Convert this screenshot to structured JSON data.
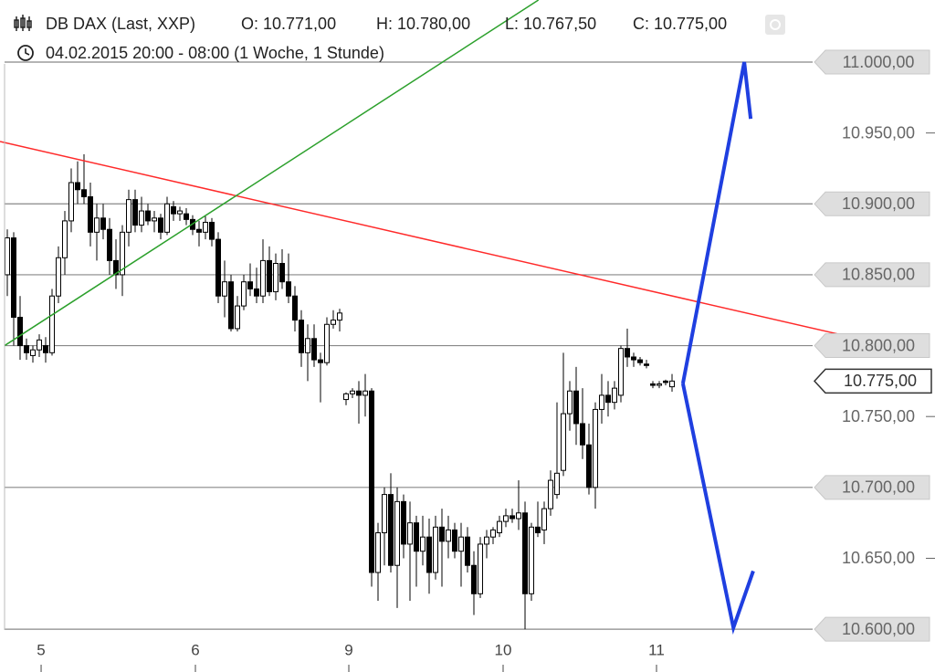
{
  "chart_data": {
    "type": "candlestick",
    "title": "DB DAX (Last, XXP)",
    "header_values": [
      "O: 10.771,00",
      "H: 10.780,00",
      "L: 10.767,50",
      "C: 10.775,00"
    ],
    "subtitle": "04.02.2015 20:00 - 08:00 (1 Woche, 1 Stunde)",
    "x": [
      0,
      1,
      2,
      3,
      4,
      5,
      6,
      7,
      8,
      9,
      10,
      11,
      12,
      13,
      14,
      15,
      16,
      17,
      18,
      19,
      20,
      21,
      22,
      23,
      24,
      25,
      26,
      27,
      28,
      29,
      30,
      31,
      32,
      33,
      34,
      35,
      36,
      37,
      38,
      39,
      40,
      41,
      42,
      43,
      44,
      45,
      46,
      47,
      48,
      49,
      50,
      51,
      52,
      53,
      54,
      55,
      56,
      57,
      58,
      59,
      60,
      61,
      62,
      63,
      64,
      65,
      66,
      67,
      68,
      69,
      70,
      71,
      72,
      73,
      74,
      75,
      76,
      77,
      78,
      79,
      80,
      81,
      82,
      83,
      84,
      85,
      86,
      87,
      88,
      89,
      90,
      91,
      92,
      93,
      94,
      95,
      96,
      97,
      98,
      99,
      100,
      101,
      102,
      103,
      104
    ],
    "open": [
      10850,
      10876,
      10820,
      10800,
      10793,
      10797,
      10800,
      10795,
      10835,
      10862,
      10888,
      10915,
      10910,
      10905,
      10880,
      10890,
      10882,
      10860,
      10850,
      10880,
      10903,
      10885,
      10895,
      10888,
      10890,
      10880,
      10898,
      10893,
      10893,
      10889,
      10882,
      10880,
      10887,
      10875,
      10835,
      10845,
      10812,
      10828,
      10845,
      10840,
      10835,
      10860,
      10838,
      10858,
      10845,
      10835,
      10818,
      10795,
      10805,
      10790,
      10788,
      10815,
      10818,
      10762,
      10766,
      10768,
      10765,
      10768,
      10640,
      10668,
      10695,
      10645,
      10690,
      10660,
      10675,
      10655,
      10665,
      10640,
      10672,
      10662,
      10670,
      10655,
      10665,
      10645,
      10625,
      10660,
      10665,
      10668,
      10676,
      10680,
      10678,
      10682,
      10625,
      10672,
      10670,
      10685,
      10695,
      10712,
      10752,
      10768,
      10745,
      10730,
      10700,
      10755,
      10765,
      10760,
      10765,
      10798,
      10792,
      10790,
      10787,
      10773,
      10772,
      10775,
      10771
    ],
    "high": [
      10882,
      10880,
      10835,
      10805,
      10800,
      10808,
      10806,
      10840,
      10870,
      10895,
      10925,
      10930,
      10935,
      10915,
      10900,
      10900,
      10890,
      10875,
      10885,
      10910,
      10910,
      10905,
      10900,
      10895,
      10893,
      10905,
      10902,
      10898,
      10897,
      10892,
      10888,
      10892,
      10890,
      10880,
      10860,
      10850,
      10835,
      10850,
      10858,
      10855,
      10875,
      10870,
      10865,
      10868,
      10865,
      10842,
      10825,
      10815,
      10815,
      10795,
      10820,
      10825,
      10826,
      10767,
      10770,
      10775,
      10780,
      10770,
      10675,
      10700,
      10710,
      10700,
      10695,
      10690,
      10680,
      10680,
      10678,
      10680,
      10685,
      10680,
      10675,
      10675,
      10672,
      10655,
      10665,
      10670,
      10672,
      10680,
      10685,
      10685,
      10705,
      10690,
      10675,
      10690,
      10690,
      10712,
      10760,
      10795,
      10775,
      10785,
      10770,
      10745,
      10760,
      10780,
      10775,
      10775,
      10800,
      10812,
      10795,
      10792,
      10790,
      10775,
      10775,
      10776,
      10780
    ],
    "low": [
      10835,
      10800,
      10790,
      10790,
      10788,
      10792,
      10788,
      10793,
      10830,
      10850,
      10880,
      10900,
      10900,
      10870,
      10860,
      10875,
      10850,
      10840,
      10835,
      10870,
      10880,
      10880,
      10885,
      10880,
      10875,
      10878,
      10888,
      10888,
      10885,
      10878,
      10870,
      10875,
      10870,
      10830,
      10820,
      10810,
      10810,
      10825,
      10835,
      10830,
      10830,
      10835,
      10832,
      10840,
      10830,
      10810,
      10785,
      10775,
      10785,
      10760,
      10786,
      10812,
      10810,
      10758,
      10763,
      10745,
      10750,
      10630,
      10620,
      10645,
      10640,
      10615,
      10650,
      10620,
      10630,
      10645,
      10625,
      10635,
      10630,
      10650,
      10650,
      10630,
      10640,
      10610,
      10622,
      10650,
      10660,
      10665,
      10672,
      10675,
      10670,
      10600,
      10620,
      10665,
      10660,
      10680,
      10692,
      10708,
      10740,
      10730,
      10720,
      10695,
      10685,
      10745,
      10750,
      10755,
      10760,
      10785,
      10785,
      10786,
      10784,
      10770,
      10770,
      10772,
      10767.5
    ],
    "close": [
      10876,
      10820,
      10800,
      10795,
      10797,
      10804,
      10795,
      10835,
      10862,
      10888,
      10915,
      10910,
      10905,
      10880,
      10890,
      10882,
      10860,
      10850,
      10880,
      10903,
      10885,
      10895,
      10888,
      10890,
      10880,
      10900,
      10893,
      10895,
      10889,
      10882,
      10880,
      10887,
      10875,
      10835,
      10845,
      10812,
      10828,
      10845,
      10840,
      10835,
      10860,
      10838,
      10858,
      10845,
      10835,
      10818,
      10795,
      10805,
      10790,
      10788,
      10815,
      10818,
      10823,
      10766,
      10768,
      10765,
      10768,
      10640,
      10668,
      10695,
      10645,
      10690,
      10660,
      10675,
      10655,
      10665,
      10640,
      10672,
      10662,
      10670,
      10655,
      10665,
      10645,
      10625,
      10660,
      10665,
      10670,
      10676,
      10680,
      10678,
      10682,
      10625,
      10672,
      10668,
      10685,
      10705,
      10710,
      10752,
      10768,
      10745,
      10730,
      10700,
      10755,
      10765,
      10760,
      10770,
      10798,
      10792,
      10790,
      10788,
      10786,
      10772,
      10773,
      10774,
      10775
    ],
    "up_color": "#ffffff",
    "down_color": "#000000",
    "xlim": [
      0,
      143.14
    ],
    "xticks": [
      {
        "value": 5.29,
        "label": "5"
      },
      {
        "value": 29.43,
        "label": "6"
      },
      {
        "value": 53.43,
        "label": "9"
      },
      {
        "value": 77.57,
        "label": "10"
      },
      {
        "value": 101.57,
        "label": "11"
      }
    ],
    "ylim": [
      10569.8,
      11043.8
    ],
    "yticks": [
      {
        "value": 11000,
        "label": "11.000,00"
      },
      {
        "value": 10950,
        "label": "10.950,00"
      },
      {
        "value": 10900,
        "label": "10.900,00"
      },
      {
        "value": 10850,
        "label": "10.850,00"
      },
      {
        "value": 10800,
        "label": "10.800,00"
      },
      {
        "value": 10750,
        "label": "10.750,00"
      },
      {
        "value": 10700,
        "label": "10.700,00"
      },
      {
        "value": 10650,
        "label": "10.650,00"
      },
      {
        "value": 10600,
        "label": "10.600,00"
      }
    ],
    "hlines": [
      11000,
      10900,
      10850,
      10800,
      10700,
      10600
    ],
    "last_price": {
      "value": 10775,
      "label": "10.775,00"
    },
    "lines": [
      {
        "color": "#ff2a2a",
        "width": 1.5,
        "x": [
          -1.14,
          141.7
        ],
        "values": [
          10944,
          10796
        ]
      },
      {
        "color": "#2ca02c",
        "width": 1.5,
        "x": [
          -0.43,
          83.1
        ],
        "values": [
          10800,
          11043.8
        ]
      },
      {
        "color": "#1f3fe0",
        "width": 4,
        "x": [
          105.7,
          115.3,
          116.3
        ],
        "values": [
          10773.3,
          11000,
          10960
        ]
      },
      {
        "color": "#1f3fe0",
        "width": 4,
        "x": [
          105.7,
          113.6,
          116.7
        ],
        "values": [
          10773.3,
          10601,
          10641
        ]
      }
    ]
  }
}
